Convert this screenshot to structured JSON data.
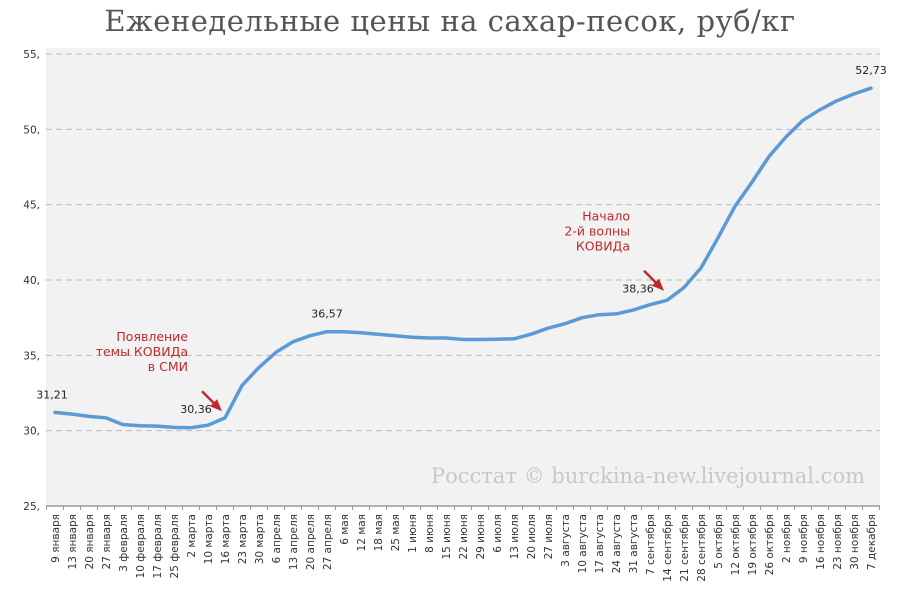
{
  "chart_data": {
    "type": "line",
    "title": "Еженедельные цены на сахар-песок, руб/кг",
    "ylim": [
      25,
      55
    ],
    "yticks": [
      "25,",
      "30,",
      "35,",
      "40,",
      "45,",
      "50,",
      "55,"
    ],
    "ytick_values": [
      25,
      30,
      35,
      40,
      45,
      50,
      55
    ],
    "grid": true,
    "categories": [
      "9 января",
      "13 января",
      "20 января",
      "27 января",
      "3 февраля",
      "10 февраля",
      "17 февраля",
      "25 февраля",
      "2 марта",
      "10 марта",
      "16 марта",
      "23 марта",
      "30 марта",
      "6 апреля",
      "13 апреля",
      "20 апреля",
      "27 апреля",
      "6 мая",
      "12 мая",
      "18 мая",
      "25 мая",
      "1 июня",
      "8 июня",
      "15 июня",
      "22 июня",
      "29 июня",
      "6 июля",
      "13 июля",
      "20 июля",
      "27 июля",
      "3 августа",
      "10 августа",
      "17 августа",
      "24 августа",
      "31 августа",
      "7 сентября",
      "14 сентября",
      "21 сентября",
      "28 сентября",
      "5 октября",
      "12 октября",
      "19 октября",
      "26 октября",
      "2 ноября",
      "9 ноября",
      "16 ноября",
      "23 ноября",
      "30 ноября",
      "7 декабря"
    ],
    "values": [
      31.21,
      31.1,
      30.95,
      30.85,
      30.4,
      30.33,
      30.3,
      30.22,
      30.2,
      30.36,
      30.85,
      33.0,
      34.2,
      35.2,
      35.9,
      36.3,
      36.57,
      36.57,
      36.5,
      36.4,
      36.3,
      36.2,
      36.15,
      36.15,
      36.05,
      36.05,
      36.07,
      36.1,
      36.4,
      36.8,
      37.1,
      37.5,
      37.7,
      37.75,
      38.0,
      38.36,
      38.65,
      39.5,
      40.8,
      42.8,
      44.9,
      46.5,
      48.2,
      49.5,
      50.6,
      51.3,
      51.9,
      52.35,
      52.73
    ],
    "data_labels": [
      {
        "index": 0,
        "text": "31,21"
      },
      {
        "index": 9,
        "text": "30,36"
      },
      {
        "index": 16,
        "text": "36,57"
      },
      {
        "index": 35,
        "text": "38,36"
      },
      {
        "index": 48,
        "text": "52,73"
      }
    ],
    "annotations": [
      {
        "index": 9,
        "lines": [
          "Появление",
          "темы КОВИДа",
          "в СМИ"
        ]
      },
      {
        "index": 35,
        "lines": [
          "Начало",
          "2-й волны",
          "КОВИДа"
        ]
      }
    ],
    "watermark": "Росстат © burckina-new.livejournal.com",
    "colors": {
      "line": "#5b9bd5",
      "plot_bg": "#f2f2f2",
      "annotation": "#c0282d",
      "grid": "#bbbbbb"
    }
  }
}
